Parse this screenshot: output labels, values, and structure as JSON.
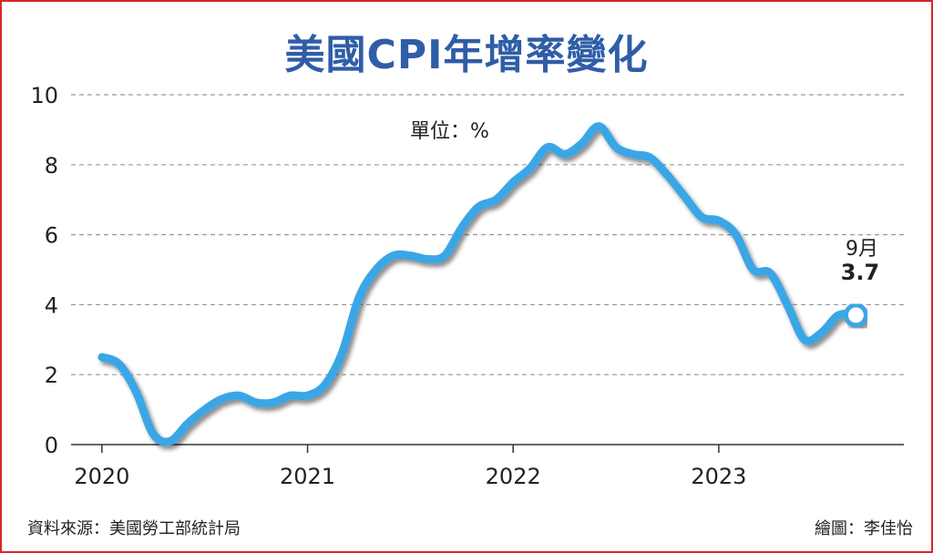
{
  "header": {
    "title": "美國CPI年增率變化"
  },
  "footer": {
    "source": "資料來源：美國勞工部統計局",
    "credit": "繪圖：李佳怡"
  },
  "colors": {
    "line": "#3aa6e6",
    "line_shadow": "#9a9a9a",
    "title": "#2f5da7",
    "grid": "#999999",
    "frame": "#d9262b"
  },
  "chart_data": {
    "type": "line",
    "unit_label": "單位：%",
    "title": "美國CPI年增率變化",
    "xlabel": "",
    "ylabel": "",
    "ylim": [
      0,
      10
    ],
    "yticks": [
      0,
      2,
      4,
      6,
      8,
      10
    ],
    "xticks": [
      {
        "value": 2020,
        "label": "2020"
      },
      {
        "value": 2021,
        "label": "2021"
      },
      {
        "value": 2022,
        "label": "2022"
      },
      {
        "value": 2023,
        "label": "2023"
      }
    ],
    "xlim": [
      2019.85,
      2023.9
    ],
    "grid": true,
    "series": [
      {
        "x": [
          2020.0,
          2020.083,
          2020.167,
          2020.25,
          2020.333,
          2020.417,
          2020.5,
          2020.583,
          2020.667,
          2020.75,
          2020.833,
          2020.917,
          2021.0,
          2021.083,
          2021.167,
          2021.25,
          2021.333,
          2021.417,
          2021.5,
          2021.583,
          2021.667,
          2021.75,
          2021.833,
          2021.917,
          2022.0,
          2022.083,
          2022.167,
          2022.25,
          2022.333,
          2022.417,
          2022.5,
          2022.583,
          2022.667,
          2022.75,
          2022.833,
          2022.917,
          2023.0,
          2023.083,
          2023.167,
          2023.25,
          2023.333,
          2023.417,
          2023.5,
          2023.583,
          2023.667
        ],
        "y": [
          2.5,
          2.3,
          1.5,
          0.3,
          0.1,
          0.6,
          1.0,
          1.3,
          1.4,
          1.2,
          1.2,
          1.4,
          1.4,
          1.7,
          2.6,
          4.2,
          5.0,
          5.4,
          5.4,
          5.3,
          5.4,
          6.2,
          6.8,
          7.0,
          7.5,
          7.9,
          8.5,
          8.3,
          8.6,
          9.1,
          8.5,
          8.3,
          8.2,
          7.7,
          7.1,
          6.5,
          6.4,
          6.0,
          5.0,
          4.9,
          4.0,
          3.0,
          3.2,
          3.7,
          3.7
        ]
      }
    ],
    "annotation": {
      "month_label": "9月",
      "value_label": "3.7"
    }
  }
}
